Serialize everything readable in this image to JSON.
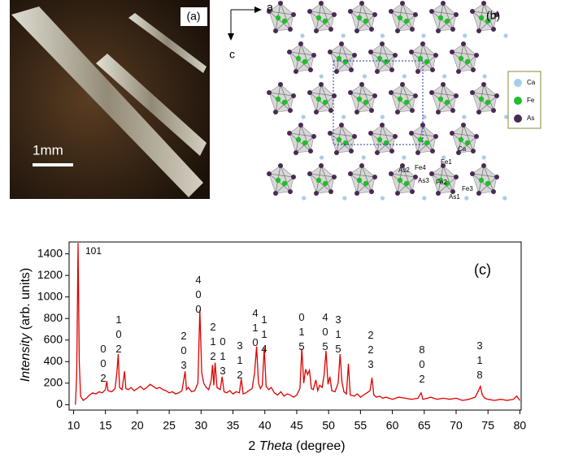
{
  "panel_a": {
    "label": "(a)",
    "scale": "1mm"
  },
  "panel_b": {
    "axis_a": "a",
    "axis_c": "c",
    "label": "(b)",
    "legend": [
      "Ca",
      "Fe",
      "As"
    ],
    "atom_labels": [
      "Ca",
      "Fe1",
      "As2",
      "Fe4",
      "As3",
      "Fe2",
      "Fe3",
      "As1"
    ]
  },
  "chart_data": {
    "type": "line",
    "panel_label": "(c)",
    "y_label": {
      "emph": "Intensity",
      "rest": "(arb. units)"
    },
    "x_label": {
      "pre": "2",
      "emph": "Theta",
      "rest": "(degree)"
    },
    "color": "#e00000",
    "xlim": [
      9.3,
      80.2
    ],
    "ylim": [
      -50,
      1510
    ],
    "xticks": [
      10,
      15,
      20,
      25,
      30,
      35,
      40,
      45,
      50,
      55,
      60,
      65,
      70,
      75,
      80
    ],
    "yticks": [
      0,
      200,
      400,
      600,
      800,
      1000,
      1200,
      1400
    ],
    "x": [
      10.3,
      10.5,
      10.7,
      10.9,
      11.1,
      11.5,
      12,
      12.5,
      13,
      13.5,
      14,
      14.5,
      15,
      15.2,
      15.4,
      16,
      16.5,
      16.8,
      17,
      17.2,
      17.6,
      18,
      18.2,
      18.6,
      19,
      19.5,
      20,
      20.5,
      21,
      21.5,
      22,
      22.5,
      23,
      23.5,
      24,
      24.5,
      25,
      25.5,
      26,
      26.5,
      27,
      27.5,
      27.7,
      28,
      28.5,
      29,
      29.5,
      29.8,
      30.1,
      30.4,
      30.8,
      31.2,
      31.6,
      31.8,
      32,
      32.2,
      32.5,
      33,
      33.3,
      33.6,
      34,
      34.5,
      35,
      35.5,
      36,
      36.3,
      36.6,
      37,
      37.5,
      38,
      38.4,
      38.7,
      39,
      39.3,
      39.6,
      39.9,
      40.2,
      40.6,
      41,
      41.5,
      42,
      42.5,
      43,
      43.5,
      44,
      44.5,
      45,
      45.5,
      45.8,
      46.1,
      46.4,
      46.7,
      47,
      47.3,
      47.6,
      48,
      48.3,
      48.6,
      49,
      49.3,
      49.6,
      49.9,
      50.2,
      50.5,
      51,
      51.5,
      51.8,
      52.1,
      52.4,
      52.8,
      53.1,
      53.4,
      54,
      54.5,
      55,
      55.5,
      56,
      56.5,
      56.8,
      57.1,
      57.5,
      58,
      58.5,
      59,
      59.5,
      60,
      61,
      62,
      63,
      64,
      64.5,
      64.8,
      65.5,
      66,
      67,
      68,
      69,
      70,
      71,
      72,
      73,
      73.5,
      73.8,
      74.1,
      74.5,
      75,
      76,
      77,
      78,
      79,
      79.5,
      80
    ],
    "values": [
      0,
      300,
      1500,
      400,
      80,
      40,
      60,
      90,
      110,
      100,
      120,
      110,
      140,
      220,
      130,
      120,
      150,
      300,
      470,
      160,
      140,
      310,
      150,
      140,
      160,
      130,
      150,
      170,
      140,
      160,
      190,
      170,
      150,
      160,
      140,
      130,
      110,
      120,
      100,
      110,
      130,
      310,
      140,
      160,
      120,
      130,
      200,
      880,
      300,
      200,
      160,
      140,
      230,
      370,
      180,
      390,
      160,
      140,
      260,
      120,
      110,
      130,
      100,
      120,
      110,
      240,
      100,
      110,
      130,
      150,
      300,
      540,
      200,
      150,
      180,
      530,
      170,
      140,
      160,
      110,
      90,
      120,
      80,
      100,
      90,
      70,
      90,
      150,
      520,
      200,
      330,
      280,
      320,
      150,
      140,
      230,
      130,
      180,
      160,
      280,
      500,
      190,
      260,
      130,
      120,
      200,
      470,
      210,
      120,
      100,
      380,
      90,
      80,
      100,
      70,
      90,
      110,
      130,
      250,
      90,
      70,
      80,
      60,
      70,
      60,
      50,
      70,
      60,
      50,
      60,
      110,
      50,
      60,
      70,
      50,
      60,
      50,
      60,
      40,
      50,
      70,
      130,
      170,
      90,
      60,
      50,
      40,
      50,
      40,
      50,
      80,
      40
    ],
    "annotations": [
      "101",
      "002",
      "102",
      "203",
      "400",
      "212",
      "013",
      "312",
      "410",
      "114",
      "015",
      "405",
      "315",
      "223",
      "802",
      "318"
    ]
  }
}
